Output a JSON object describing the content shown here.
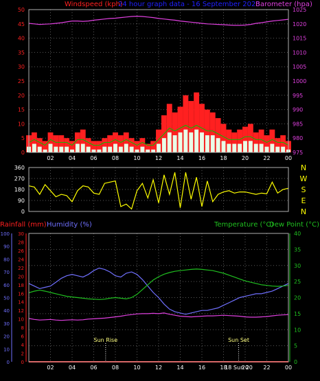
{
  "colors": {
    "background": "#000000",
    "frame": "#b0b0b0",
    "grid": "#5a5a5a",
    "wind_speed": "#ff0000",
    "wind_gust": "#ff2020",
    "wind_avg": "#e8ffe8",
    "wind_avg_line": "#00c000",
    "barometer": "#e040e0",
    "direction": "#ffff00",
    "rainfall": "#ff2020",
    "humidity": "#7070ff",
    "temperature": "#20c020",
    "dewpoint": "#e040e0",
    "sun": "#ffffff",
    "header_title": "#2020ff",
    "bottom_axis_left": "#7070ff",
    "inner_axis_left": "#ff2020",
    "right_axis_bottom": "#20c020"
  },
  "chart_data": [
    {
      "type": "bar",
      "title": "24 hour graph data - 16 September 2023",
      "ylabel_left": "Windspeed (kph)",
      "ylabel_right": "Barometer (hpa)",
      "grid": true,
      "x_tick_labels": [
        "02",
        "04",
        "06",
        "08",
        "10",
        "12",
        "14",
        "16",
        "18",
        "20",
        "22",
        "00"
      ],
      "y_left_ticks": [
        "0",
        "5",
        "10",
        "15",
        "20",
        "25",
        "30",
        "35",
        "40",
        "45",
        "50"
      ],
      "y_left_range": [
        0,
        50
      ],
      "y_right_ticks": [
        "975",
        "980",
        "985",
        "990",
        "995",
        "1000",
        "1005",
        "1010",
        "1015",
        "1020",
        "1025"
      ],
      "y_right_range": [
        975,
        1025
      ],
      "hours": [
        0,
        0.5,
        1,
        1.5,
        2,
        2.5,
        3,
        3.5,
        4,
        4.5,
        5,
        5.5,
        6,
        6.5,
        7,
        7.5,
        8,
        8.5,
        9,
        9.5,
        10,
        10.5,
        11,
        11.5,
        12,
        12.5,
        13,
        13.5,
        14,
        14.5,
        15,
        15.5,
        16,
        16.5,
        17,
        17.5,
        18,
        18.5,
        19,
        19.5,
        20,
        20.5,
        21,
        21.5,
        22,
        22.5,
        23,
        23.5,
        24
      ],
      "series": [
        {
          "name": "Windspeed (kph)",
          "style": "gust-bars",
          "values": [
            6,
            7,
            5,
            4,
            7,
            6,
            6,
            5,
            4,
            7,
            8,
            5,
            4,
            4,
            5,
            6,
            7,
            6,
            7,
            5,
            4,
            5,
            3,
            4,
            8,
            13,
            17,
            14,
            16,
            20,
            18,
            21,
            17,
            15,
            14,
            12,
            10,
            8,
            7,
            8,
            9,
            10,
            7,
            8,
            6,
            8,
            5,
            6,
            4
          ]
        },
        {
          "name": "",
          "style": "average-bars",
          "values": [
            2,
            3,
            2,
            1,
            3,
            2,
            2,
            2,
            1,
            3,
            3,
            2,
            1,
            1,
            2,
            2,
            3,
            2,
            3,
            2,
            1,
            2,
            1,
            1,
            3,
            5,
            7,
            6,
            7,
            8,
            7,
            8,
            7,
            6,
            6,
            5,
            4,
            3,
            3,
            3,
            4,
            4,
            3,
            3,
            2,
            3,
            2,
            2,
            1
          ]
        },
        {
          "name": "Barometer (hpa)",
          "values": [
            1020.2,
            1020.0,
            1019.8,
            1019.9,
            1020.0,
            1020.2,
            1020.4,
            1020.7,
            1021.0,
            1021.0,
            1020.9,
            1021.0,
            1021.3,
            1021.5,
            1021.7,
            1021.9,
            1022.0,
            1022.2,
            1022.4,
            1022.6,
            1022.7,
            1022.6,
            1022.4,
            1022.2,
            1021.9,
            1021.7,
            1021.5,
            1021.3,
            1021.0,
            1020.8,
            1020.6,
            1020.4,
            1020.2,
            1020.0,
            1019.9,
            1019.8,
            1019.7,
            1019.6,
            1019.5,
            1019.5,
            1019.6,
            1019.8,
            1020.2,
            1020.4,
            1020.7,
            1021.0,
            1021.2,
            1021.4,
            1021.6
          ]
        }
      ]
    },
    {
      "type": "line",
      "title": "",
      "ylabel_right": "N W S E N",
      "grid": true,
      "y_left_ticks": [
        "0",
        "90",
        "180",
        "270",
        "360"
      ],
      "y_right_labels": [
        "N",
        "W",
        "S",
        "E",
        "N"
      ],
      "y_range": [
        0,
        360
      ],
      "hours": [
        0,
        0.5,
        1,
        1.5,
        2,
        2.5,
        3,
        3.5,
        4,
        4.5,
        5,
        5.5,
        6,
        6.5,
        7,
        7.5,
        8,
        8.5,
        9,
        9.5,
        10,
        10.5,
        11,
        11.5,
        12,
        12.5,
        13,
        13.5,
        14,
        14.5,
        15,
        15.5,
        16,
        16.5,
        17,
        17.5,
        18,
        18.5,
        19,
        19.5,
        20,
        20.5,
        21,
        21.5,
        22,
        22.5,
        23,
        23.5,
        24
      ],
      "series": [
        {
          "name": "Direction",
          "values": [
            210,
            200,
            140,
            220,
            170,
            120,
            140,
            130,
            80,
            170,
            210,
            200,
            150,
            140,
            230,
            240,
            250,
            40,
            60,
            20,
            170,
            230,
            110,
            260,
            70,
            300,
            140,
            320,
            30,
            320,
            100,
            280,
            40,
            250,
            80,
            140,
            160,
            170,
            150,
            160,
            160,
            150,
            140,
            150,
            145,
            240,
            150,
            180,
            190
          ]
        }
      ]
    },
    {
      "type": "line",
      "title": "",
      "ylabel_left_outer": "Rainfall (mm)",
      "ylabel_left_inner": "Humidity (%)",
      "ylabel_right": "Temperature (°C)",
      "ylabel_right_2": "Dew Point (°C)",
      "grid": true,
      "x_tick_labels": [
        "02",
        "04",
        "06",
        "08",
        "10",
        "12",
        "14",
        "16",
        "18",
        "20",
        "22",
        "00"
      ],
      "y_humidity_ticks": [
        "0",
        "10",
        "20",
        "30",
        "40",
        "50",
        "60",
        "70",
        "80",
        "90",
        "100"
      ],
      "y_rain_ticks": [
        "0",
        "2",
        "4",
        "6",
        "8",
        "10",
        "12",
        "14",
        "16",
        "18",
        "20",
        "22",
        "24",
        "26",
        "28",
        "30"
      ],
      "y_temp_ticks": [
        "0",
        "5",
        "10",
        "15",
        "20",
        "25",
        "30",
        "35",
        "40"
      ],
      "annotations": [
        {
          "text": "Sun Rise",
          "hour": 7.1
        },
        {
          "text": "Sun Set",
          "hour": 19.4
        },
        {
          "text": "18 Sun 20",
          "hour": 19.4
        }
      ],
      "hours": [
        0,
        0.5,
        1,
        1.5,
        2,
        2.5,
        3,
        3.5,
        4,
        4.5,
        5,
        5.5,
        6,
        6.5,
        7,
        7.5,
        8,
        8.5,
        9,
        9.5,
        10,
        10.5,
        11,
        11.5,
        12,
        12.5,
        13,
        13.5,
        14,
        14.5,
        15,
        15.5,
        16,
        16.5,
        17,
        17.5,
        18,
        18.5,
        19,
        19.5,
        20,
        20.5,
        21,
        21.5,
        22,
        22.5,
        23,
        23.5,
        24
      ],
      "series": [
        {
          "name": "Humidity (%)",
          "axis": "humidity",
          "values": [
            61,
            59,
            57,
            58,
            59,
            62,
            65,
            67,
            68,
            67,
            66,
            68,
            71,
            73,
            72,
            70,
            67,
            66,
            69,
            70,
            68,
            64,
            59,
            54,
            50,
            45,
            41,
            39,
            38,
            37,
            38,
            39,
            40,
            40,
            41,
            42,
            44,
            46,
            48,
            50,
            51,
            52,
            53,
            53,
            54,
            55,
            57,
            59,
            61
          ]
        },
        {
          "name": "Temperature (°C)",
          "axis": "temperature",
          "values": [
            21.5,
            22.0,
            22.3,
            22.0,
            21.6,
            21.2,
            20.8,
            20.4,
            20.2,
            20.0,
            19.8,
            19.6,
            19.5,
            19.4,
            19.5,
            19.8,
            20.0,
            19.8,
            19.6,
            20.0,
            21.0,
            22.5,
            24.0,
            25.5,
            26.5,
            27.3,
            27.8,
            28.2,
            28.4,
            28.6,
            28.8,
            28.9,
            28.8,
            28.6,
            28.4,
            28.0,
            27.6,
            27.0,
            26.4,
            25.8,
            25.2,
            24.8,
            24.4,
            24.0,
            23.8,
            23.6,
            23.5,
            23.6,
            23.8
          ]
        },
        {
          "name": "Dew Point (°C)",
          "axis": "temperature",
          "values": [
            13.5,
            13.2,
            13.0,
            13.1,
            13.2,
            13.0,
            12.9,
            13.0,
            13.1,
            13.0,
            13.1,
            13.3,
            13.4,
            13.5,
            13.6,
            13.8,
            14.0,
            14.2,
            14.5,
            14.7,
            14.9,
            15.0,
            15.0,
            15.1,
            15.0,
            15.2,
            14.8,
            14.5,
            14.2,
            14.1,
            14.0,
            14.1,
            14.2,
            14.3,
            14.3,
            14.4,
            14.5,
            14.4,
            14.3,
            14.2,
            14.0,
            13.9,
            13.9,
            14.0,
            14.1,
            14.3,
            14.5,
            14.6,
            14.7
          ]
        },
        {
          "name": "Rainfall (mm)",
          "axis": "rain",
          "values": [
            0,
            0,
            0,
            0,
            0,
            0,
            0,
            0,
            0,
            0,
            0,
            0,
            0,
            0,
            0,
            0,
            0,
            0,
            0,
            0,
            0,
            0,
            0,
            0,
            0,
            0,
            0,
            0,
            0,
            0,
            0,
            0,
            0,
            0,
            0,
            0,
            0,
            0,
            0,
            0,
            0,
            0,
            0,
            0,
            0,
            0,
            0,
            0,
            0
          ]
        }
      ]
    }
  ]
}
